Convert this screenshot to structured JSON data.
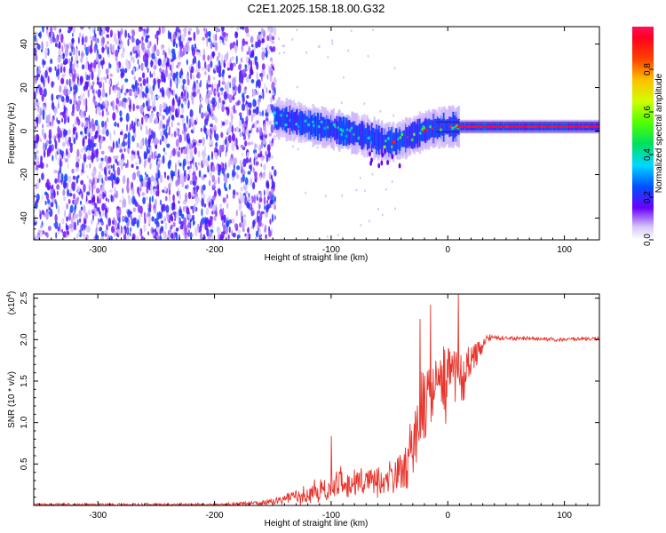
{
  "title": "C2E1.2025.158.18.00.G32",
  "chart_data": [
    {
      "type": "heatmap",
      "xlabel": "Height of straight line (km)",
      "ylabel": "Frequency (Hz)",
      "xlim": [
        -355,
        130
      ],
      "ylim": [
        -50,
        48
      ],
      "x_ticks": [
        -300,
        -200,
        -100,
        0,
        100
      ],
      "y_ticks": [
        -40,
        -20,
        0,
        20,
        40
      ],
      "x_tick_labels": [
        "-300",
        "-200",
        "-100",
        "0",
        "100"
      ],
      "y_tick_labels": [
        "-40",
        "-20",
        "0",
        "20",
        "40"
      ],
      "noise_region_x": [
        -355,
        -148
      ],
      "ridge": [
        {
          "x": -148,
          "f": 6
        },
        {
          "x": -135,
          "f": 5
        },
        {
          "x": -120,
          "f": 3
        },
        {
          "x": -100,
          "f": 1
        },
        {
          "x": -80,
          "f": -1
        },
        {
          "x": -65,
          "f": -3
        },
        {
          "x": -55,
          "f": -5
        },
        {
          "x": -45,
          "f": -5
        },
        {
          "x": -35,
          "f": -3
        },
        {
          "x": -25,
          "f": -1
        },
        {
          "x": -15,
          "f": 1
        },
        {
          "x": 0,
          "f": 2
        },
        {
          "x": 20,
          "f": 2
        },
        {
          "x": 60,
          "f": 2
        },
        {
          "x": 100,
          "f": 2
        },
        {
          "x": 130,
          "f": 2
        }
      ],
      "colorbar": {
        "label": "Normalized spectral amplitude",
        "range": [
          0,
          1
        ],
        "ticks": [
          0.0,
          0.2,
          0.4,
          0.6,
          0.8
        ],
        "tick_labels": [
          "0.0",
          "0.2",
          "0.4",
          "0.6",
          "0.8"
        ]
      }
    },
    {
      "type": "line",
      "xlabel": "Height of straight line (km)",
      "ylabel": "SNR (10 * v/v)",
      "y_multiplier": "(x10",
      "y_multiplier_exp": "4",
      "y_multiplier_close": ")",
      "xlim": [
        -355,
        130
      ],
      "ylim": [
        0,
        25500
      ],
      "x_ticks": [
        -300,
        -200,
        -100,
        0,
        100
      ],
      "y_ticks": [
        5000,
        10000,
        15000,
        20000,
        25000
      ],
      "x_tick_labels": [
        "-300",
        "-200",
        "-100",
        "0",
        "100"
      ],
      "y_tick_labels": [
        "0.5",
        "1.0",
        "1.5",
        "2.0",
        "2.5"
      ],
      "series": [
        {
          "color": "#e8342c",
          "baseline": [
            {
              "x": -355,
              "y": 100
            },
            {
              "x": -200,
              "y": 100
            },
            {
              "x": -160,
              "y": 300
            },
            {
              "x": -120,
              "y": 1200
            },
            {
              "x": -100,
              "y": 2200
            },
            {
              "x": -80,
              "y": 2800
            },
            {
              "x": -60,
              "y": 3000
            },
            {
              "x": -45,
              "y": 3500
            },
            {
              "x": -35,
              "y": 4500
            },
            {
              "x": -28,
              "y": 9000
            },
            {
              "x": -22,
              "y": 12000
            },
            {
              "x": -15,
              "y": 13500
            },
            {
              "x": -8,
              "y": 15000
            },
            {
              "x": 0,
              "y": 15500
            },
            {
              "x": 10,
              "y": 15500
            },
            {
              "x": 20,
              "y": 16500
            },
            {
              "x": 28,
              "y": 19000
            },
            {
              "x": 35,
              "y": 20300
            },
            {
              "x": 50,
              "y": 20200
            },
            {
              "x": 80,
              "y": 20100
            },
            {
              "x": 95,
              "y": 20000
            },
            {
              "x": 110,
              "y": 20100
            },
            {
              "x": 130,
              "y": 20100
            }
          ],
          "noise": [
            {
              "x": -355,
              "amp": 300
            },
            {
              "x": -200,
              "amp": 300
            },
            {
              "x": -150,
              "amp": 700
            },
            {
              "x": -120,
              "amp": 2000
            },
            {
              "x": -100,
              "amp": 3500
            },
            {
              "x": -80,
              "amp": 3500
            },
            {
              "x": -60,
              "amp": 3500
            },
            {
              "x": -40,
              "amp": 4500
            },
            {
              "x": -28,
              "amp": 9000
            },
            {
              "x": -15,
              "amp": 9000
            },
            {
              "x": 0,
              "amp": 8000
            },
            {
              "x": 20,
              "amp": 6000
            },
            {
              "x": 30,
              "amp": 1500
            },
            {
              "x": 40,
              "amp": 500
            },
            {
              "x": 130,
              "amp": 400
            }
          ],
          "peaks": [
            {
              "x": -100,
              "y": 8400
            },
            {
              "x": -24,
              "y": 22500
            },
            {
              "x": -15,
              "y": 24200
            },
            {
              "x": 9,
              "y": 25600
            }
          ]
        }
      ]
    }
  ]
}
